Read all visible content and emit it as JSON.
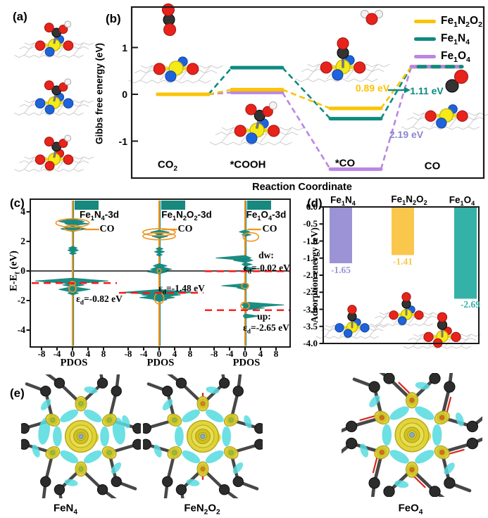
{
  "panels": {
    "a": {
      "label": "(a)"
    },
    "b": {
      "label": "(b)"
    },
    "c": {
      "label": "(c)"
    },
    "d": {
      "label": "(d)"
    },
    "e": {
      "label": "(e)",
      "items": [
        "FeN_{4}",
        "FeN_{2}O_{2}",
        "FeO_{4}"
      ]
    }
  },
  "chart_data": [
    {
      "id": "gibbs-free-energy-diagram",
      "type": "line",
      "xlabel": "Reaction Coordinate",
      "ylabel": "Gibbs free energy (eV)",
      "yticks": [
        1,
        0,
        -1
      ],
      "ylim": [
        -1.9,
        1.6
      ],
      "categories": [
        "CO_{2}",
        "*COOH",
        "*CO",
        "CO"
      ],
      "series": [
        {
          "name": "Fe_{1}N_{2}O_{2}",
          "color": "#FBC300",
          "values": [
            0,
            0.1,
            -0.3,
            0.59
          ]
        },
        {
          "name": "Fe_{1}N_{4}",
          "color": "#0E8B80",
          "values": [
            0,
            0.57,
            -0.52,
            0.59
          ]
        },
        {
          "name": "Fe_{1}O_{4}",
          "color": "#BB86E2",
          "values": [
            0,
            0.04,
            -1.6,
            0.59
          ]
        }
      ],
      "annotations": [
        {
          "text": "0.89 eV",
          "color": "#FBC300",
          "refers_to": "Fe1N2O2 *CO desorption barrier"
        },
        {
          "text": "1.11 eV",
          "color": "#0E8B80",
          "refers_to": "Fe1N4 *CO desorption barrier"
        },
        {
          "text": "2.19 eV",
          "color": "#8B86CB",
          "refers_to": "Fe1O4 *CO desorption barrier"
        }
      ]
    },
    {
      "id": "pdos",
      "type": "area",
      "ylabel": "E-E_{f} (eV)",
      "xlabel": "PDOS",
      "yticks": [
        4,
        2,
        0,
        -2,
        -4
      ],
      "xticks": [
        -8,
        -4,
        0,
        4,
        8
      ],
      "dos_color": "#17897F",
      "co_color": "#F0941E",
      "fermi_line": 0,
      "panels": [
        {
          "label": "Fe_{1}N_{4}-3d",
          "co_label": "CO",
          "ed": [
            {
              "prefix": "",
              "text": "ε_{d}=-0.82 eV",
              "value": -0.82
            }
          ],
          "peaks": [
            [
              3.35,
              3.5,
              3,
              4
            ],
            [
              3.2,
              2,
              4,
              3
            ],
            [
              2.85,
              3,
              3.5,
              4
            ],
            [
              1.55,
              1,
              1.2,
              2.5
            ],
            [
              1.4,
              1.2,
              1.5,
              3
            ],
            [
              1.2,
              0.8,
              1,
              2
            ],
            [
              -0.68,
              9.6,
              9.2,
              4
            ],
            [
              -0.95,
              2.5,
              3,
              3
            ],
            [
              -1.25,
              3.5,
              4.5,
              4
            ],
            [
              -1.5,
              1.2,
              1.5,
              2.5
            ]
          ],
          "co_ellipses": [
            [
              3.25,
              4.3,
              6,
              0
            ],
            [
              2.9,
              2.2,
              4,
              0
            ],
            [
              -0.85,
              0.7,
              3,
              0
            ],
            [
              -1.2,
              0.9,
              5,
              0
            ]
          ]
        },
        {
          "label": "Fe_{1}N_{2}O_{2}-3d",
          "co_label": "CO",
          "ed": [
            {
              "prefix": "",
              "text": "ε_{d}=-1.48 eV",
              "value": -1.48
            }
          ],
          "peaks": [
            [
              2.62,
              2.2,
              2.6,
              3
            ],
            [
              2.35,
              1.8,
              2.2,
              3
            ],
            [
              1.5,
              0.8,
              1,
              2
            ],
            [
              1.3,
              1.2,
              1.4,
              2.5
            ],
            [
              1.1,
              0.7,
              0.8,
              2
            ],
            [
              0.35,
              1.5,
              2,
              3
            ],
            [
              0.12,
              2.2,
              3.2,
              4
            ],
            [
              -0.05,
              3,
              2,
              3
            ],
            [
              -1.45,
              9.5,
              9,
              4
            ],
            [
              -1.62,
              4.5,
              5.5,
              3.5
            ],
            [
              -1.8,
              5,
              4,
              3.5
            ],
            [
              -1.95,
              1.5,
              2,
              2.5
            ]
          ],
          "co_ellipses": [
            [
              2.62,
              4.2,
              5,
              0
            ],
            [
              2.35,
              4.2,
              5,
              0
            ],
            [
              -1.85,
              1.2,
              8,
              0
            ],
            [
              0.0,
              0.5,
              3,
              0
            ]
          ]
        },
        {
          "label": "Fe_{1}O_{4}-3d",
          "co_label": "CO",
          "ed": [
            {
              "prefix": "dw:",
              "text": "ε_{d}=-0.02 eV",
              "value": -0.02
            },
            {
              "prefix": "up:",
              "text": "ε_{d}=-2.65 eV",
              "value": -2.65
            }
          ],
          "peaks": [
            [
              2.65,
              1.5,
              1.2,
              2.5
            ],
            [
              2.45,
              0.8,
              1.5,
              2
            ],
            [
              0.88,
              7.5,
              1.5,
              3.5
            ],
            [
              0.72,
              3,
              2,
              3
            ],
            [
              0.45,
              0.8,
              1.8,
              2.5
            ],
            [
              0.15,
              0.5,
              3.2,
              3
            ],
            [
              -1.0,
              6,
              1,
              3
            ],
            [
              -1.15,
              2,
              0.8,
              2.5
            ],
            [
              -2.3,
              0.8,
              10,
              4
            ],
            [
              -2.5,
              0.5,
              5,
              3
            ],
            [
              -3.05,
              0.5,
              3.5,
              3
            ]
          ],
          "co_ellipses": [
            [
              2.3,
              2,
              6,
              1.5
            ],
            [
              -1.0,
              0.9,
              4,
              0
            ],
            [
              -2.35,
              1.1,
              5,
              0
            ]
          ]
        }
      ]
    },
    {
      "id": "co-adsorption-energy",
      "type": "bar",
      "ylabel": "Adsorption energy (eV)",
      "categories": [
        "Fe_{1}N_{4}",
        "Fe_{1}N_{2}O_{2}",
        "Fe_{1}O_{4}"
      ],
      "values": [
        -1.65,
        -1.41,
        -2.69
      ],
      "value_labels": [
        "-1.65",
        "-1.41",
        "-2.69"
      ],
      "colors": [
        "#9C93D7",
        "#FAC74D",
        "#35B2A8"
      ],
      "yticks": [
        "0.0",
        "-0.5",
        "-1.0",
        "-1.5",
        "-2.0",
        "-2.5",
        "-3.0",
        "-3.5",
        "-4.0"
      ],
      "ylim": [
        -4.0,
        0.0
      ]
    }
  ]
}
